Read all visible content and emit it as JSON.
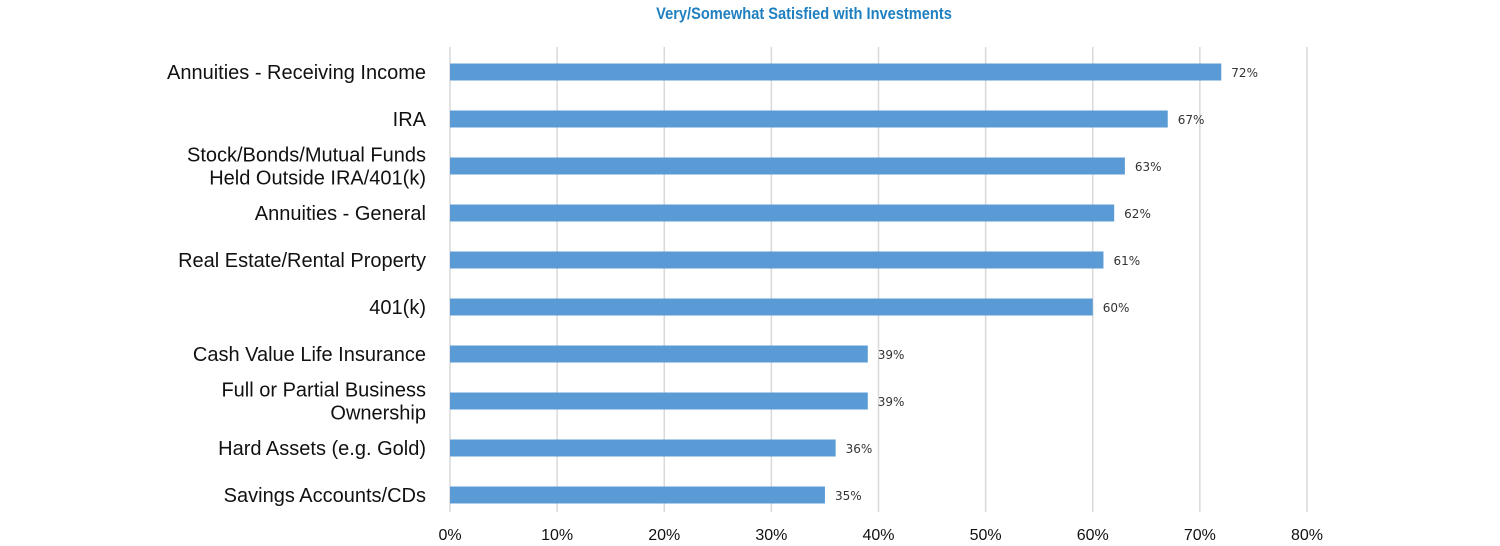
{
  "chart_data": {
    "type": "bar",
    "orientation": "horizontal",
    "title": "Very/Somewhat Satisfied with Investments",
    "categories": [
      [
        "Annuities - Receiving Income"
      ],
      [
        "IRA"
      ],
      [
        "Stock/Bonds/Mutual Funds",
        "Held Outside IRA/401(k)"
      ],
      [
        "Annuities - General"
      ],
      [
        "Real Estate/Rental Property"
      ],
      [
        "401(k)"
      ],
      [
        "Cash Value Life Insurance"
      ],
      [
        "Full or Partial Business",
        "Ownership"
      ],
      [
        "Hard Assets (e.g. Gold)"
      ],
      [
        "Savings Accounts/CDs"
      ]
    ],
    "values": [
      72,
      67,
      63,
      62,
      61,
      60,
      39,
      39,
      36,
      35
    ],
    "value_labels": [
      "72%",
      "67%",
      "63%",
      "62%",
      "61%",
      "60%",
      "39%",
      "39%",
      "36%",
      "35%"
    ],
    "xlim": [
      0,
      80
    ],
    "x_ticks": [
      "0%",
      "10%",
      "20%",
      "30%",
      "40%",
      "50%",
      "60%",
      "70%",
      "80%"
    ],
    "grid": "vertical",
    "bar_color": "#5b9bd5",
    "title_color": "#1f7fc0"
  }
}
